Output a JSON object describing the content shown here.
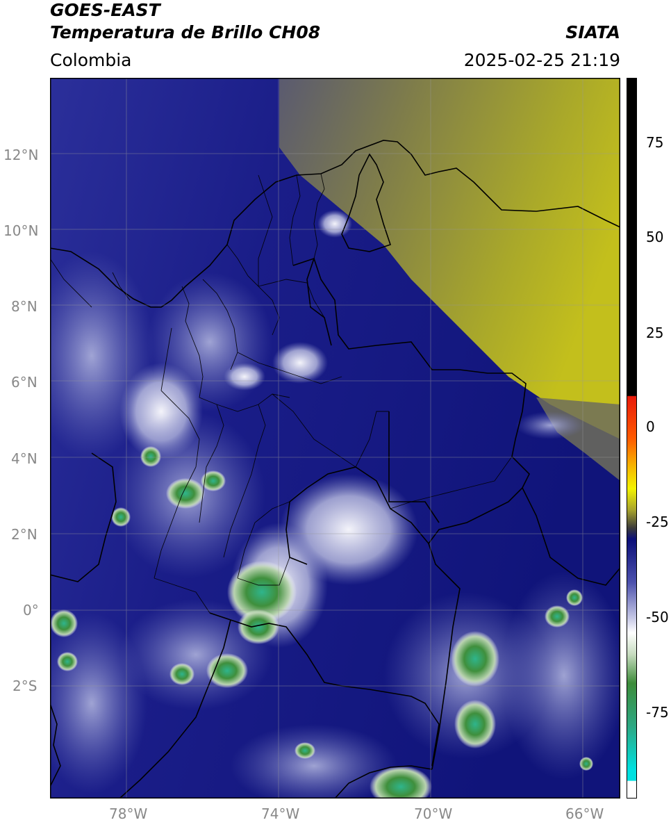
{
  "header": {
    "satellite": "GOES-EAST",
    "product": "Temperatura de Brillo CH08",
    "source": "SIATA",
    "region": "Colombia",
    "datetime": "2025-02-25 21:19"
  },
  "map": {
    "lon_range": [
      -80,
      -65
    ],
    "lat_range": [
      -5,
      14
    ],
    "lat_ticks": [
      "12°N",
      "10°N",
      "8°N",
      "6°N",
      "4°N",
      "2°N",
      "0°",
      "2°S"
    ],
    "lon_ticks": [
      "78°W",
      "74°W",
      "70°W",
      "66°W"
    ],
    "gridlines": true,
    "colors": {
      "dark_blue": "#0b0f78",
      "mid_blue": "#3c3fa8",
      "light_blue": "#9ea4d8",
      "white_clouds": "#f2f2f8",
      "green": "#3f8f3c",
      "teal": "#2fb58c",
      "olive": "#a9a82a",
      "yellow_olive": "#c3bf1c",
      "border": "#000000"
    }
  },
  "colorbar": {
    "tick_labels": [
      "75",
      "50",
      "25",
      "0",
      "-25",
      "-50",
      "-75"
    ],
    "range": [
      -95,
      90
    ]
  }
}
